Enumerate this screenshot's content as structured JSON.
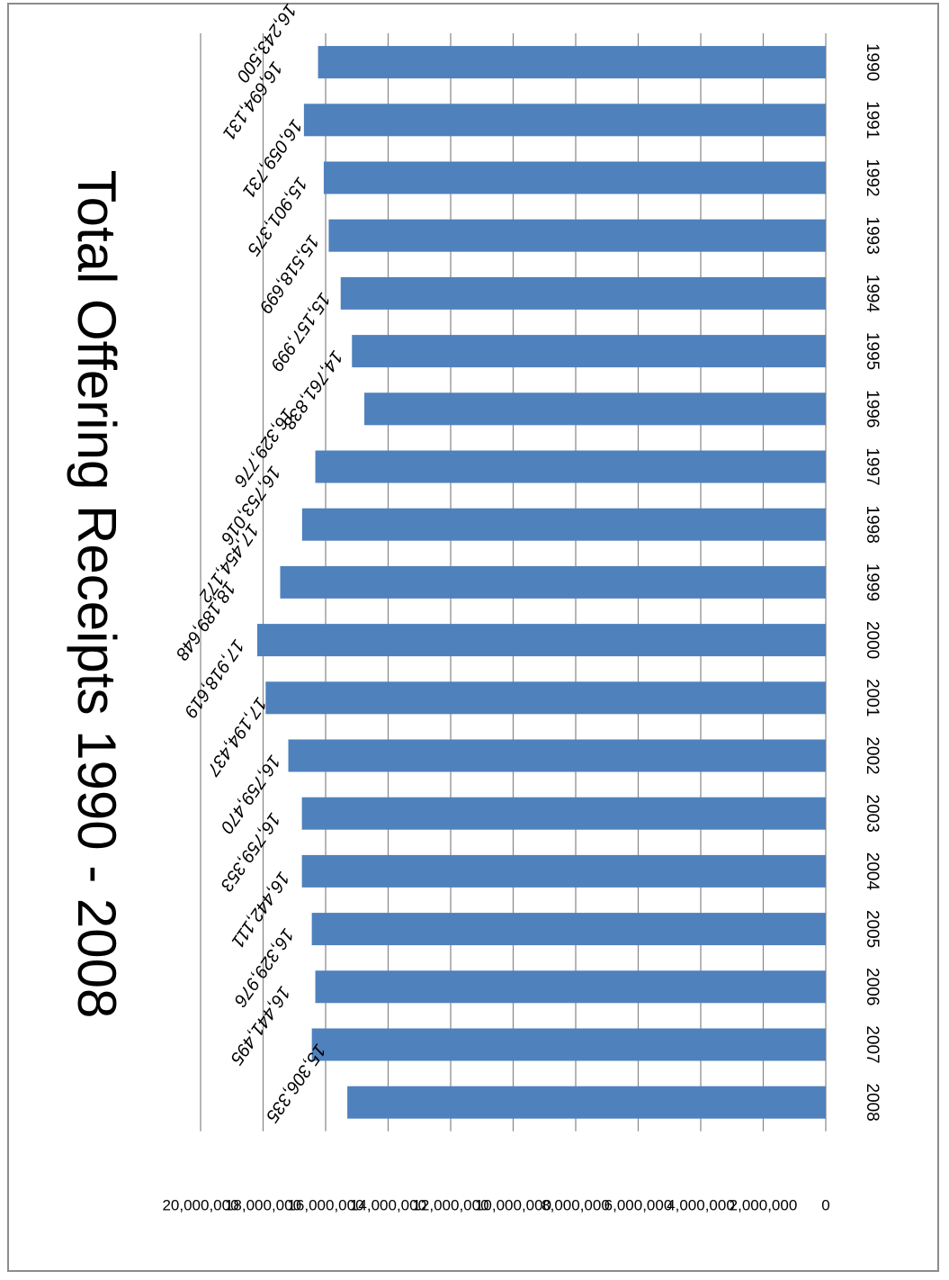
{
  "chart_data": {
    "type": "bar",
    "title": "Total Offering Receipts 1990 - 2008",
    "categories": [
      "1990",
      "1991",
      "1992",
      "1993",
      "1994",
      "1995",
      "1996",
      "1997",
      "1998",
      "1999",
      "2000",
      "2001",
      "2002",
      "2003",
      "2004",
      "2005",
      "2006",
      "2007",
      "2008"
    ],
    "values": [
      16243500,
      16694131,
      16059731,
      15901375,
      15518699,
      15157999,
      14761838,
      16329776,
      16753016,
      17454172,
      18189648,
      17918619,
      17194437,
      16759470,
      16759353,
      16442111,
      16329976,
      16441495,
      15306335
    ],
    "data_labels": [
      "16,243,500",
      "16,694,131",
      "16,059,731",
      "15,901,375",
      "15,518,699",
      "15,157,999",
      "14,761,838",
      "16,329,776",
      "16,753,016",
      "17,454,172",
      "18,189,648",
      "17,918,619",
      "17,194,437",
      "16,759,470",
      "16,759,353",
      "16,442,111",
      "16,329,976",
      "16,441,495",
      "15,306,335"
    ],
    "ylim": [
      0,
      20000000
    ],
    "yticks": [
      "0",
      "2,000,000",
      "4,000,000",
      "6,000,000",
      "8,000,000",
      "10,000,000",
      "12,000,000",
      "14,000,000",
      "16,000,000",
      "18,000,000",
      "20,000,000"
    ],
    "grid": true,
    "orientation": "rotated 90 degrees clockwise",
    "bar_color": "#4f81bd",
    "gridline_color": "#868686"
  }
}
